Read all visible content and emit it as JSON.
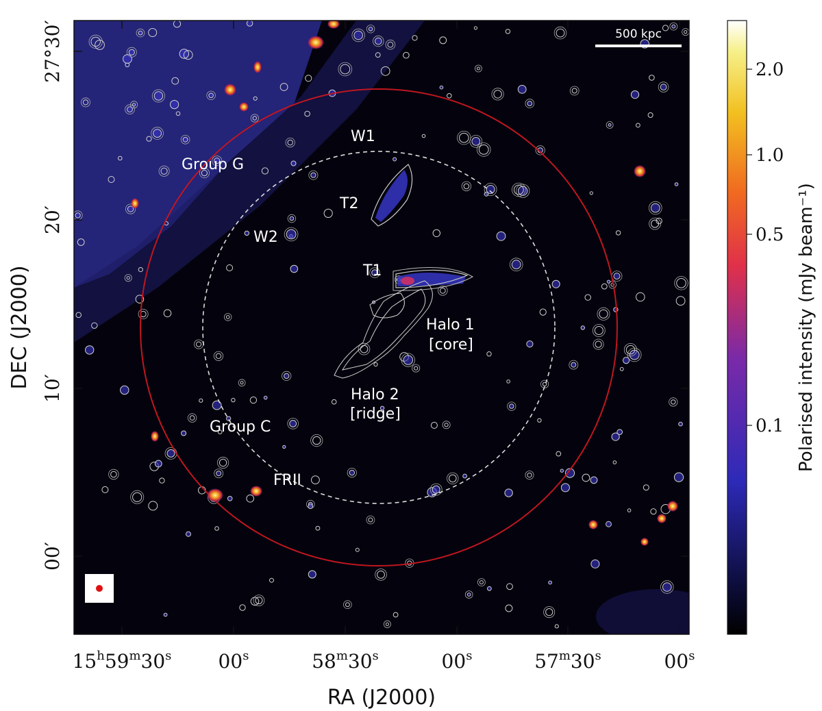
{
  "figure": {
    "colorbar": {
      "title": "Polarised intensity (mJy beam⁻¹)",
      "tick_labels": [
        "2.0",
        "1.0",
        "0.5",
        "0.1"
      ]
    },
    "axes": {
      "xlabel": "RA (J2000)",
      "ylabel": "DEC (J2000)",
      "x_ticks": [
        {
          "h": "15",
          "m": "59",
          "s": "30"
        },
        {
          "s": "00"
        },
        {
          "m": "58",
          "s": "30"
        },
        {
          "s": "00"
        },
        {
          "m": "57",
          "s": "30"
        },
        {
          "s": "00"
        }
      ],
      "y_ticks": [
        "27°30′",
        "20′",
        "10′",
        "00′"
      ]
    },
    "scale_bar": "500 kpc",
    "annotations": {
      "w1": "W1",
      "group_g": "Group G",
      "t2": "T2",
      "w2": "W2",
      "t1": "T1",
      "halo1_a": "Halo 1",
      "halo1_b": "[core]",
      "halo2_a": "Halo 2",
      "halo2_b": "[ridge]",
      "group_c": "Group C",
      "frii": "FRII"
    },
    "colors": {
      "background": "#04030d",
      "emission": "#2a2a8c",
      "red_circle": "#c0161f",
      "contours": "#d8d8d8"
    }
  }
}
